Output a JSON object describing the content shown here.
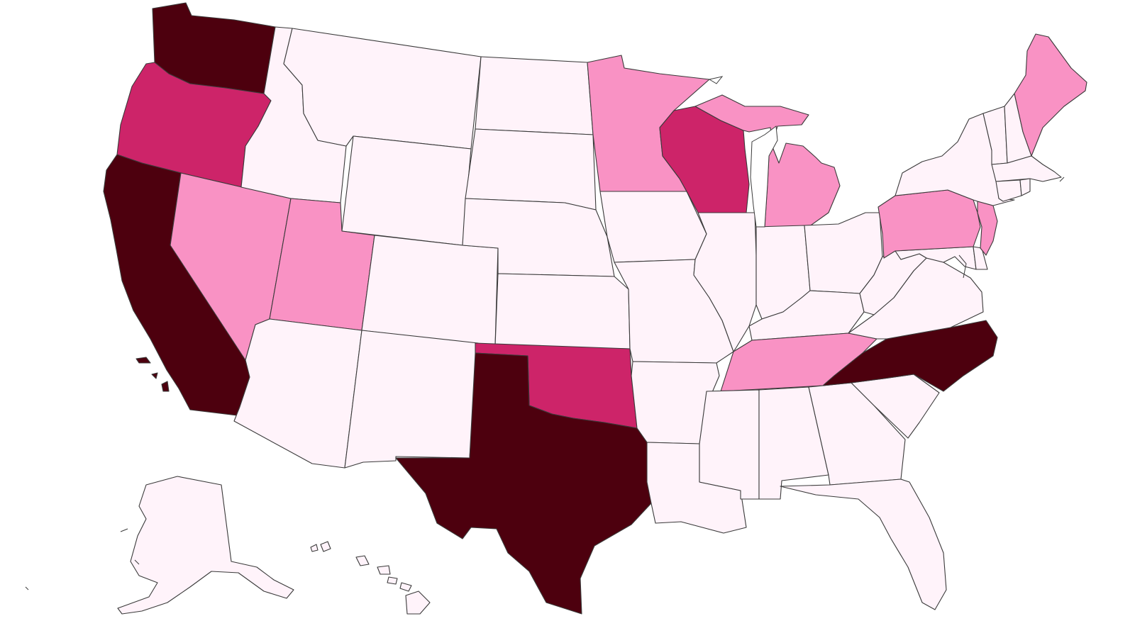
{
  "map": {
    "region": "United States",
    "colors": {
      "level_0": "#fff3fa",
      "level_1": "#f992c4",
      "level_2": "#cd2469",
      "level_3": "#4d000e",
      "border": "#3a3a3a",
      "background": "#ffffff"
    },
    "states": [
      {
        "code": "WA",
        "level": 3
      },
      {
        "code": "OR",
        "level": 2
      },
      {
        "code": "CA",
        "level": 3
      },
      {
        "code": "NV",
        "level": 1
      },
      {
        "code": "ID",
        "level": 0
      },
      {
        "code": "MT",
        "level": 0
      },
      {
        "code": "WY",
        "level": 0
      },
      {
        "code": "UT",
        "level": 1
      },
      {
        "code": "AZ",
        "level": 0
      },
      {
        "code": "CO",
        "level": 0
      },
      {
        "code": "NM",
        "level": 0
      },
      {
        "code": "ND",
        "level": 0
      },
      {
        "code": "SD",
        "level": 0
      },
      {
        "code": "NE",
        "level": 0
      },
      {
        "code": "KS",
        "level": 0
      },
      {
        "code": "OK",
        "level": 2
      },
      {
        "code": "TX",
        "level": 3
      },
      {
        "code": "MN",
        "level": 1
      },
      {
        "code": "IA",
        "level": 0
      },
      {
        "code": "MO",
        "level": 0
      },
      {
        "code": "AR",
        "level": 0
      },
      {
        "code": "LA",
        "level": 0
      },
      {
        "code": "WI",
        "level": 2
      },
      {
        "code": "IL",
        "level": 0
      },
      {
        "code": "MI",
        "level": 1
      },
      {
        "code": "IN",
        "level": 0
      },
      {
        "code": "OH",
        "level": 0
      },
      {
        "code": "KY",
        "level": 0
      },
      {
        "code": "TN",
        "level": 1
      },
      {
        "code": "MS",
        "level": 0
      },
      {
        "code": "AL",
        "level": 0
      },
      {
        "code": "GA",
        "level": 0
      },
      {
        "code": "FL",
        "level": 0
      },
      {
        "code": "SC",
        "level": 0
      },
      {
        "code": "NC",
        "level": 3
      },
      {
        "code": "VA",
        "level": 0
      },
      {
        "code": "WV",
        "level": 0
      },
      {
        "code": "MD",
        "level": 0
      },
      {
        "code": "DE",
        "level": 0
      },
      {
        "code": "PA",
        "level": 1
      },
      {
        "code": "NJ",
        "level": 1
      },
      {
        "code": "NY",
        "level": 0
      },
      {
        "code": "CT",
        "level": 0
      },
      {
        "code": "RI",
        "level": 0
      },
      {
        "code": "MA",
        "level": 0
      },
      {
        "code": "VT",
        "level": 0
      },
      {
        "code": "NH",
        "level": 0
      },
      {
        "code": "ME",
        "level": 1
      },
      {
        "code": "AK",
        "level": 0
      },
      {
        "code": "HI",
        "level": 0
      }
    ]
  }
}
